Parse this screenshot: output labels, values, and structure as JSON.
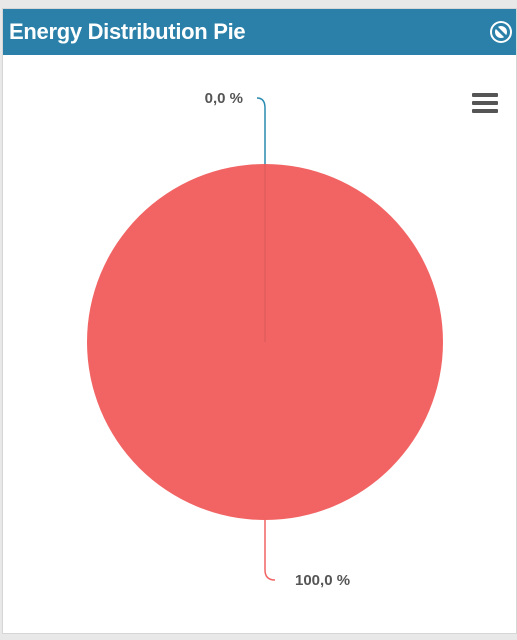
{
  "widget": {
    "title": "Energy Distribution Pie",
    "icons": {
      "disable": "block-icon",
      "menu": "hamburger-menu-icon"
    }
  },
  "colors": {
    "header": "#2a80a8",
    "slice_main": "#f26464",
    "slice_small": "#2a8bb0"
  },
  "chart_data": {
    "type": "pie",
    "slices": [
      {
        "value": 0.0,
        "label": "0,0 %",
        "color": "#2a8bb0"
      },
      {
        "value": 100.0,
        "label": "100,0 %",
        "color": "#f26464"
      }
    ]
  }
}
